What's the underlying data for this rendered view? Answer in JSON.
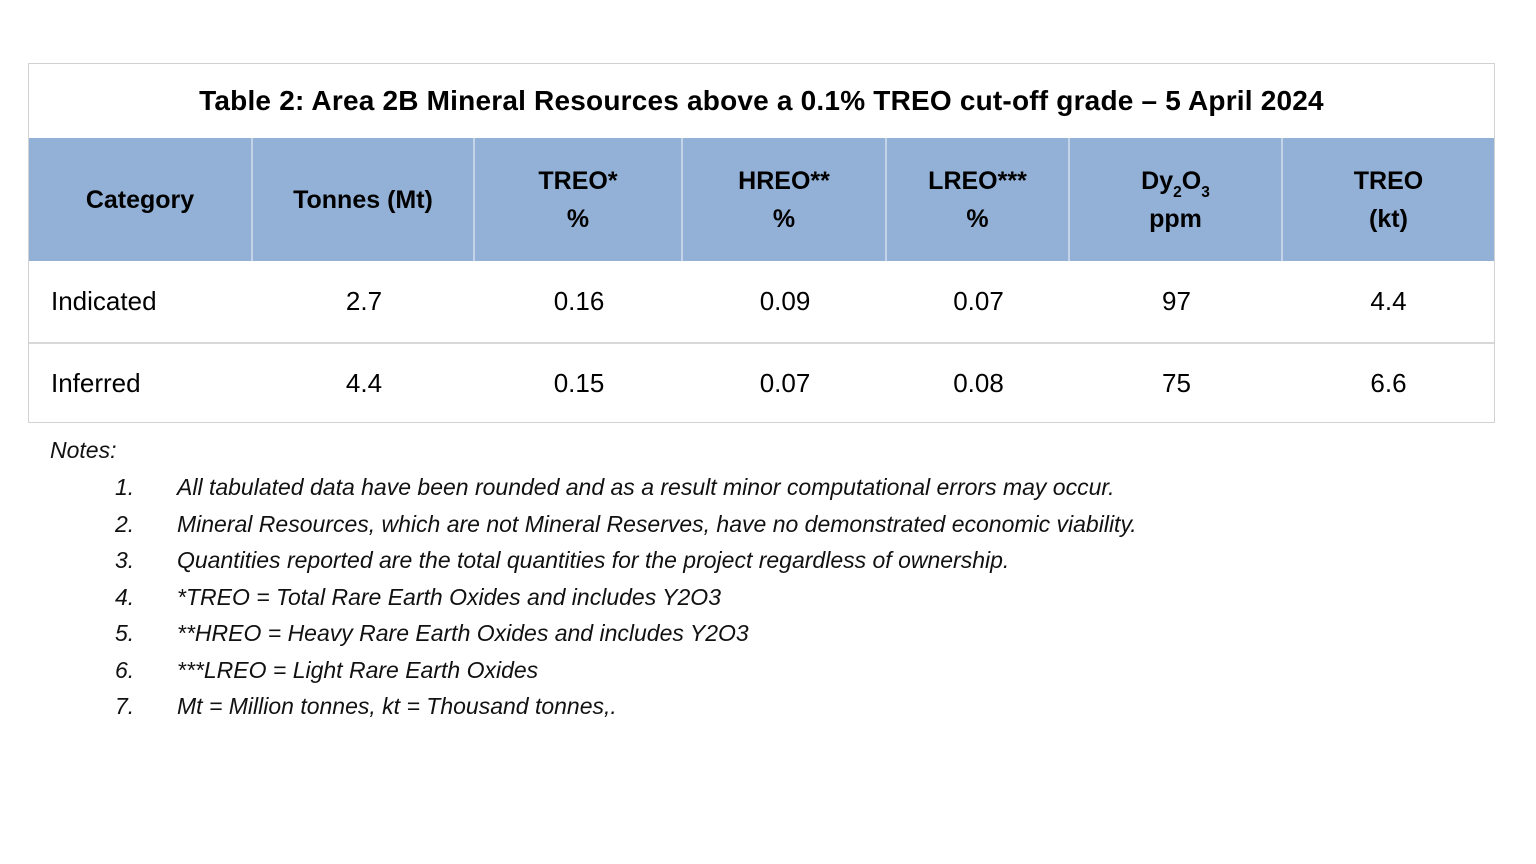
{
  "table": {
    "title": "Table 2: Area 2B Mineral Resources above a 0.1% TREO cut-off grade – 5 April 2024",
    "header_bg": "#93b1d6",
    "columns": [
      {
        "line1": "Category",
        "line2": ""
      },
      {
        "line1": "Tonnes (Mt)",
        "line2": ""
      },
      {
        "line1": "TREO*",
        "line2": "%"
      },
      {
        "line1": "HREO**",
        "line2": "%"
      },
      {
        "line1": "LREO***",
        "line2": "%"
      },
      {
        "line1": "Dy2O3",
        "formula": {
          "base1": "Dy",
          "sub1": "2",
          "base2": "O",
          "sub2": "3"
        },
        "line2": "ppm"
      },
      {
        "line1": "TREO",
        "line2": "(kt)"
      }
    ],
    "rows": [
      {
        "category": "Indicated",
        "tonnes": "2.7",
        "treo_pct": "0.16",
        "hreo_pct": "0.09",
        "lreo_pct": "0.07",
        "dy2o3_ppm": "97",
        "treo_kt": "4.4"
      },
      {
        "category": "Inferred",
        "tonnes": "4.4",
        "treo_pct": "0.15",
        "hreo_pct": "0.07",
        "lreo_pct": "0.08",
        "dy2o3_ppm": "75",
        "treo_kt": "6.6"
      }
    ]
  },
  "notes": {
    "label": "Notes:",
    "items": [
      {
        "num": "1.",
        "text": "All tabulated data have been rounded and as a result minor computational errors may occur."
      },
      {
        "num": "2.",
        "text": "Mineral Resources, which are not Mineral Reserves, have no demonstrated economic viability."
      },
      {
        "num": "3.",
        "text": "Quantities reported are the total quantities for the project regardless of ownership."
      },
      {
        "num": "4.",
        "text": "*TREO = Total Rare Earth Oxides and includes Y2O3"
      },
      {
        "num": "5.",
        "text": "**HREO = Heavy Rare Earth Oxides and includes Y2O3"
      },
      {
        "num": "6.",
        "text": "***LREO = Light Rare Earth Oxides"
      },
      {
        "num": "7.",
        "text": "Mt = Million tonnes, kt = Thousand tonnes,."
      }
    ]
  }
}
